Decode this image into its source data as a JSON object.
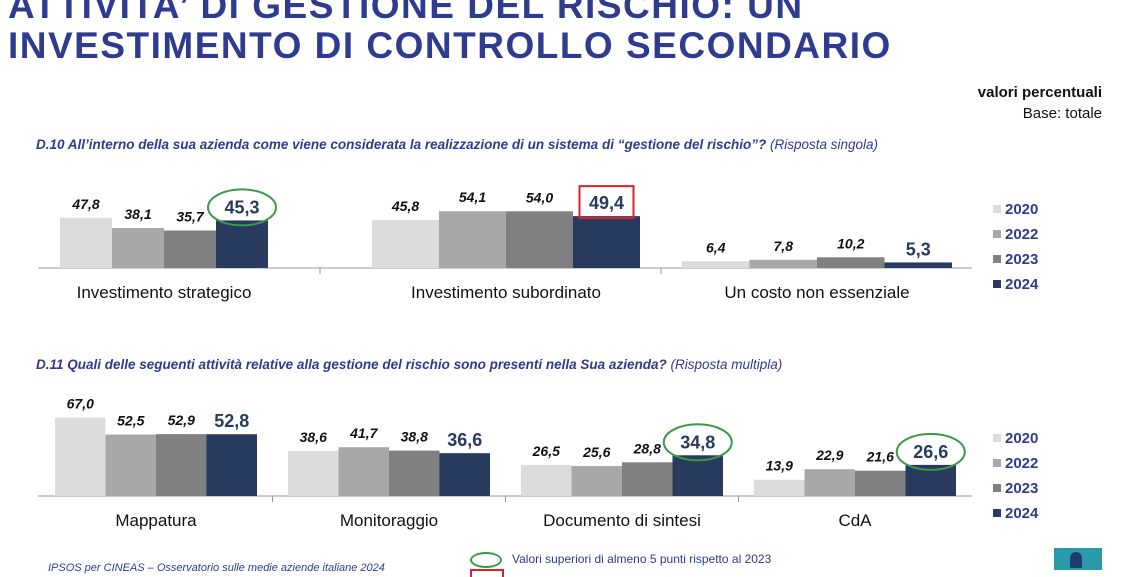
{
  "title_line1": "ATTIVITA’ DI GESTIONE DEL RISCHIO: UN",
  "title_line2": "INVESTIMENTO DI CONTROLLO SECONDARIO",
  "unit_label": "valori percentuali",
  "base_label": "Base: totale",
  "colors": {
    "2020": "#dcdcdc",
    "2022": "#a8a8a8",
    "2023": "#808080",
    "2024": "#283a5e",
    "highlight_up": "#3a9a45",
    "highlight_down": "#d8222a",
    "accent": "#2e3b8f"
  },
  "footer": {
    "source": "IPSOS per CINEAS – Osservatorio sulle medie aziende italiane 2024",
    "legend_green": "Valori superiori di almeno 5 punti rispetto al 2023"
  },
  "chart_data": [
    {
      "type": "bar",
      "question": "D.10 All’interno della sua azienda come viene considerata la realizzazione di un sistema di “gestione del rischio”?",
      "question_note": "(Risposta singola)",
      "categories": [
        "Investimento strategico",
        "Investimento subordinato",
        "Un costo non essenziale"
      ],
      "series": [
        {
          "name": "2020",
          "values": [
            47.8,
            45.8,
            6.4
          ],
          "labels": [
            "47,8",
            "45,8",
            "6,4"
          ]
        },
        {
          "name": "2022",
          "values": [
            38.1,
            54.1,
            7.8
          ],
          "labels": [
            "38,1",
            "54,1",
            "7,8"
          ]
        },
        {
          "name": "2023",
          "values": [
            35.7,
            54.0,
            10.2
          ],
          "labels": [
            "35,7",
            "54,0",
            "10,2"
          ]
        },
        {
          "name": "2024",
          "values": [
            45.3,
            49.4,
            5.3
          ],
          "labels": [
            "45,3",
            "49,4",
            "5,3"
          ]
        }
      ],
      "highlights": {
        "up": [
          "Investimento strategico"
        ],
        "down": [
          "Investimento subordinato"
        ]
      },
      "ylim": [
        0,
        60
      ]
    },
    {
      "type": "bar",
      "question": "D.11 Quali delle seguenti attività relative alla gestione del rischio sono presenti nella Sua azienda?",
      "question_note": "(Risposta multipla)",
      "categories": [
        "Mappatura",
        "Monitoraggio",
        "Documento di sintesi",
        "CdA"
      ],
      "series": [
        {
          "name": "2020",
          "values": [
            67.0,
            38.6,
            26.5,
            13.9
          ],
          "labels": [
            "67,0",
            "38,6",
            "26,5",
            "13,9"
          ]
        },
        {
          "name": "2022",
          "values": [
            52.5,
            41.7,
            25.6,
            22.9
          ],
          "labels": [
            "52,5",
            "41,7",
            "25,6",
            "22,9"
          ]
        },
        {
          "name": "2023",
          "values": [
            52.9,
            38.8,
            28.8,
            21.6
          ],
          "labels": [
            "52,9",
            "38,8",
            "28,8",
            "21,6"
          ]
        },
        {
          "name": "2024",
          "values": [
            52.8,
            36.6,
            34.8,
            26.6
          ],
          "labels": [
            "52,8",
            "36,6",
            "34,8",
            "26,6"
          ]
        }
      ],
      "highlights": {
        "up": [
          "Documento di sintesi",
          "CdA"
        ],
        "down": []
      },
      "ylim": [
        0,
        70
      ]
    }
  ]
}
